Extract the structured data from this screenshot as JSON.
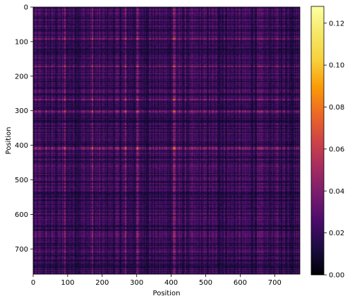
{
  "chart_data": {
    "type": "heatmap",
    "title": "",
    "xlabel": "Position",
    "ylabel": "Position",
    "size": 773,
    "xlim": [
      0,
      773
    ],
    "ylim": [
      773,
      0
    ],
    "x_ticks": [
      0,
      100,
      200,
      300,
      400,
      500,
      600,
      700
    ],
    "y_ticks": [
      0,
      100,
      200,
      300,
      400,
      500,
      600,
      700
    ],
    "colorbar": {
      "range": [
        0.0,
        0.128
      ],
      "ticks": [
        "0.00",
        "0.02",
        "0.04",
        "0.06",
        "0.08",
        "0.10",
        "0.12"
      ],
      "tick_values": [
        0.0,
        0.02,
        0.04,
        0.06,
        0.08,
        0.1,
        0.12
      ],
      "colormap": "inferno"
    },
    "grid": false,
    "bright_rows_cols": [
      90,
      170,
      265,
      300,
      405,
      410
    ]
  }
}
